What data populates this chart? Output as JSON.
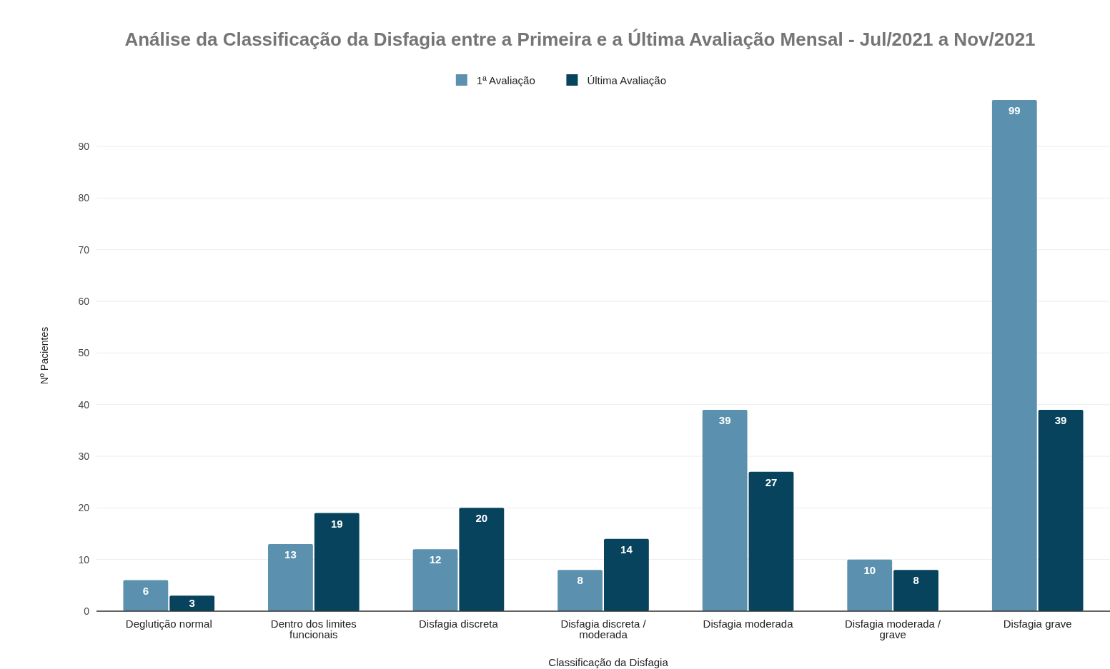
{
  "chart_data": {
    "type": "bar",
    "title": "Análise da Classificação da Disfagia entre a Primeira e a Última Avaliação Mensal - Jul/2021 a Nov/2021",
    "xlabel": "Classificação da Disfagia",
    "ylabel": "Nº Pacientes",
    "categories": [
      "Deglutição normal",
      "Dentro dos limites funcionais",
      "Disfagia discreta",
      "Disfagia discreta / moderada",
      "Disfagia moderada",
      "Disfagia moderada / grave",
      "Disfagia grave"
    ],
    "series": [
      {
        "name": "1ª Avaliação",
        "color": "#5b91ae",
        "values": [
          6,
          13,
          12,
          8,
          39,
          10,
          99
        ]
      },
      {
        "name": "Última Avaliação",
        "color": "#08435e",
        "values": [
          3,
          19,
          20,
          14,
          27,
          8,
          39
        ]
      }
    ],
    "ylim": [
      0,
      99
    ],
    "yticks": [
      0,
      10,
      20,
      30,
      40,
      50,
      60,
      70,
      80,
      90
    ],
    "grid": "y",
    "legend": "top",
    "data_labels": true
  }
}
